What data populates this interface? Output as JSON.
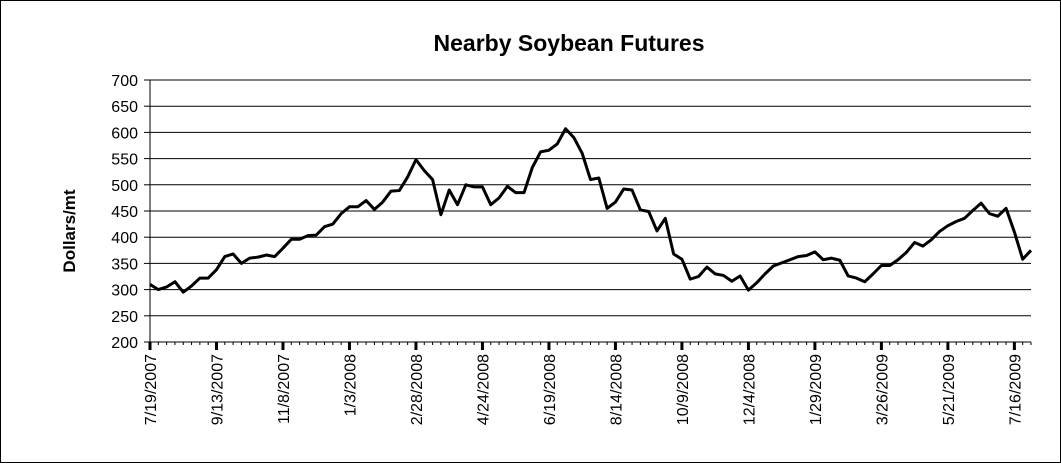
{
  "chart_data": {
    "type": "line",
    "title": "Nearby Soybean Futures",
    "xlabel": "",
    "ylabel": "Dollars/mt",
    "ylim": [
      200,
      700
    ],
    "yticks": [
      200,
      250,
      300,
      350,
      400,
      450,
      500,
      550,
      600,
      650,
      700
    ],
    "ytick_labels": [
      "200",
      "250",
      "300",
      "350",
      "400",
      "450",
      "500",
      "550",
      "600",
      "650",
      "700"
    ],
    "xtick_labels": [
      "7/19/2007",
      "9/13/2007",
      "11/8/2007",
      "1/3/2008",
      "2/28/2008",
      "4/24/2008",
      "6/19/2008",
      "8/14/2008",
      "10/9/2008",
      "12/4/2008",
      "1/29/2009",
      "3/26/2009",
      "5/21/2009",
      "7/16/2009"
    ],
    "grid": true,
    "series_color": "#000000",
    "series": [
      {
        "values": [
          310,
          300,
          305,
          315,
          295,
          307,
          322,
          322,
          338,
          363,
          368,
          350,
          360,
          362,
          366,
          363,
          379,
          396,
          396,
          403,
          404,
          420,
          425,
          445,
          458,
          458,
          470,
          453,
          467,
          488,
          489,
          515,
          548,
          527,
          510,
          443,
          490,
          462,
          500,
          496,
          496,
          462,
          475,
          497,
          485,
          485,
          533,
          563,
          566,
          578,
          607,
          590,
          560,
          510,
          513,
          455,
          467,
          492,
          490,
          452,
          449,
          412,
          436,
          368,
          358,
          320,
          325,
          343,
          330,
          327,
          316,
          326,
          299,
          313,
          330,
          345,
          351,
          357,
          363,
          365,
          372,
          357,
          360,
          356,
          326,
          322,
          315,
          330,
          346,
          346,
          357,
          371,
          390,
          383,
          395,
          411,
          422,
          430,
          436,
          451,
          465,
          445,
          440,
          455,
          410,
          358,
          375
        ]
      }
    ]
  }
}
